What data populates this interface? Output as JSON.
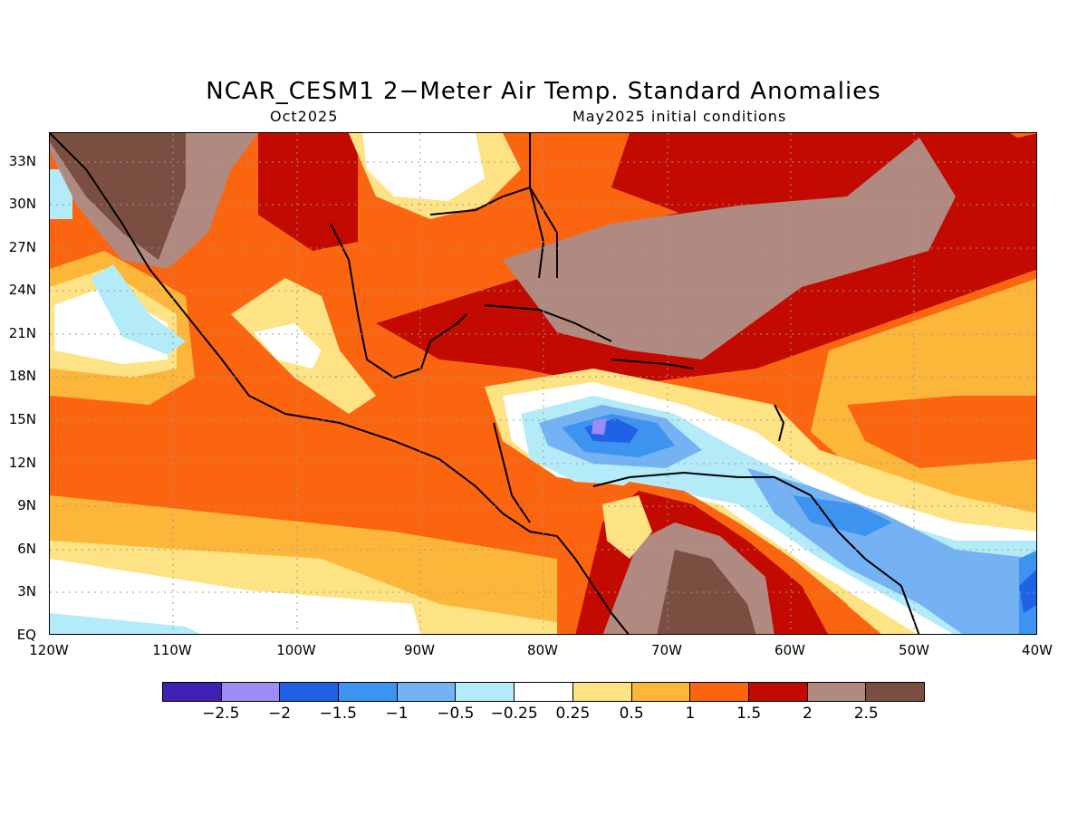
{
  "title": "NCAR_CESM1 2−Meter Air Temp. Standard Anomalies",
  "subtitle_left": "Oct2025",
  "subtitle_right": "May2025 initial conditions",
  "latitude_labels": [
    "33N",
    "30N",
    "27N",
    "24N",
    "21N",
    "18N",
    "15N",
    "12N",
    "9N",
    "6N",
    "3N",
    "EQ"
  ],
  "longitude_labels": [
    "120W",
    "110W",
    "100W",
    "90W",
    "80W",
    "70W",
    "60W",
    "50W",
    "40W"
  ],
  "colorbar": {
    "colors": [
      "#3f22b4",
      "#9b8cf6",
      "#1f62e6",
      "#3d93f0",
      "#74b2f3",
      "#b3ebf9",
      "#ffffff",
      "#fde384",
      "#fcb63a",
      "#fb6510",
      "#c20a00",
      "#b08a80",
      "#7a4f42"
    ],
    "labels": [
      "−2.5",
      "−2",
      "−1.5",
      "−1",
      "−0.5",
      "−0.25",
      "0.25",
      "0.5",
      "1",
      "1.5",
      "2",
      "2.5"
    ]
  },
  "map": {
    "region": "Gulf of Mexico, Caribbean and tropical Atlantic",
    "lat_range": [
      0,
      35
    ],
    "lon_range": [
      -120,
      -40
    ]
  }
}
